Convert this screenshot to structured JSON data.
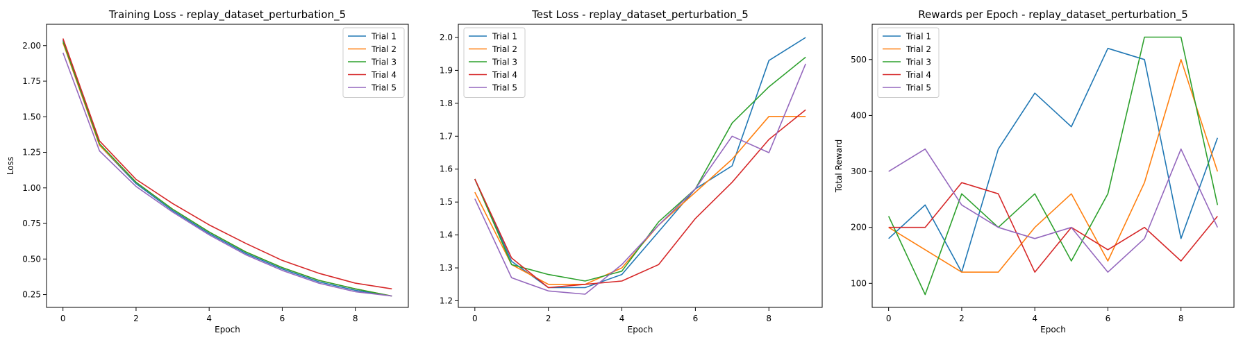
{
  "figure": {
    "colors": [
      "#1f77b4",
      "#ff7f0e",
      "#2ca02c",
      "#d62728",
      "#9467bd"
    ]
  },
  "chart_data": [
    {
      "type": "line",
      "title": "Training Loss - replay_dataset_perturbation_5",
      "xlabel": "Epoch",
      "ylabel": "Loss",
      "xlim": [
        -0.45,
        9.45
      ],
      "ylim": [
        0.16,
        2.15
      ],
      "xticks": [
        "0",
        "2",
        "4",
        "6",
        "8"
      ],
      "yticks": [
        "0.25",
        "0.50",
        "0.75",
        "1.00",
        "1.25",
        "1.50",
        "1.75",
        "2.00"
      ],
      "legend": "upper right",
      "x": [
        0,
        1,
        2,
        3,
        4,
        5,
        6,
        7,
        8,
        9
      ],
      "series": [
        {
          "name": "Trial 1",
          "values": [
            2.04,
            1.3,
            1.03,
            0.84,
            0.68,
            0.54,
            0.43,
            0.34,
            0.28,
            0.24
          ]
        },
        {
          "name": "Trial 2",
          "values": [
            2.02,
            1.3,
            1.04,
            0.85,
            0.69,
            0.55,
            0.44,
            0.35,
            0.29,
            0.24
          ]
        },
        {
          "name": "Trial 3",
          "values": [
            2.03,
            1.31,
            1.04,
            0.85,
            0.69,
            0.55,
            0.44,
            0.35,
            0.29,
            0.24
          ]
        },
        {
          "name": "Trial 4",
          "values": [
            2.05,
            1.33,
            1.06,
            0.89,
            0.74,
            0.61,
            0.49,
            0.4,
            0.33,
            0.29
          ]
        },
        {
          "name": "Trial 5",
          "values": [
            1.95,
            1.26,
            1.01,
            0.83,
            0.67,
            0.53,
            0.42,
            0.33,
            0.27,
            0.24
          ]
        }
      ]
    },
    {
      "type": "line",
      "title": "Test Loss - replay_dataset_perturbation_5",
      "xlabel": "Epoch",
      "ylabel": "",
      "xlim": [
        -0.45,
        9.45
      ],
      "ylim": [
        1.18,
        2.04
      ],
      "xticks": [
        "0",
        "2",
        "4",
        "6",
        "8"
      ],
      "yticks": [
        "1.2",
        "1.3",
        "1.4",
        "1.5",
        "1.6",
        "1.7",
        "1.8",
        "1.9",
        "2.0"
      ],
      "legend": "upper left",
      "x": [
        0,
        1,
        2,
        3,
        4,
        5,
        6,
        7,
        8,
        9
      ],
      "series": [
        {
          "name": "Trial 1",
          "values": [
            1.57,
            1.32,
            1.24,
            1.24,
            1.28,
            1.41,
            1.54,
            1.61,
            1.93,
            2.0
          ]
        },
        {
          "name": "Trial 2",
          "values": [
            1.53,
            1.31,
            1.25,
            1.25,
            1.3,
            1.43,
            1.53,
            1.63,
            1.76,
            1.76
          ]
        },
        {
          "name": "Trial 3",
          "values": [
            1.57,
            1.31,
            1.28,
            1.26,
            1.29,
            1.44,
            1.54,
            1.74,
            1.85,
            1.94
          ]
        },
        {
          "name": "Trial 4",
          "values": [
            1.57,
            1.33,
            1.24,
            1.25,
            1.26,
            1.31,
            1.45,
            1.56,
            1.69,
            1.78
          ]
        },
        {
          "name": "Trial 5",
          "values": [
            1.51,
            1.27,
            1.23,
            1.22,
            1.31,
            1.43,
            1.54,
            1.7,
            1.65,
            1.92
          ]
        }
      ]
    },
    {
      "type": "line",
      "title": "Rewards per Epoch - replay_dataset_perturbation_5",
      "xlabel": "Epoch",
      "ylabel": "Total Reward",
      "xlim": [
        -0.45,
        9.45
      ],
      "ylim": [
        57,
        563
      ],
      "xticks": [
        "0",
        "2",
        "4",
        "6",
        "8"
      ],
      "yticks": [
        "100",
        "200",
        "300",
        "400",
        "500"
      ],
      "legend": "upper left",
      "x": [
        0,
        1,
        2,
        3,
        4,
        5,
        6,
        7,
        8,
        9
      ],
      "series": [
        {
          "name": "Trial 1",
          "values": [
            180,
            240,
            120,
            340,
            440,
            380,
            520,
            500,
            180,
            360
          ]
        },
        {
          "name": "Trial 2",
          "values": [
            200,
            160,
            120,
            120,
            200,
            260,
            140,
            280,
            500,
            300
          ]
        },
        {
          "name": "Trial 3",
          "values": [
            220,
            80,
            260,
            200,
            260,
            140,
            260,
            540,
            540,
            240
          ]
        },
        {
          "name": "Trial 4",
          "values": [
            200,
            200,
            280,
            260,
            120,
            200,
            160,
            200,
            140,
            220
          ]
        },
        {
          "name": "Trial 5",
          "values": [
            300,
            340,
            240,
            200,
            180,
            200,
            120,
            180,
            340,
            200
          ]
        }
      ]
    }
  ]
}
